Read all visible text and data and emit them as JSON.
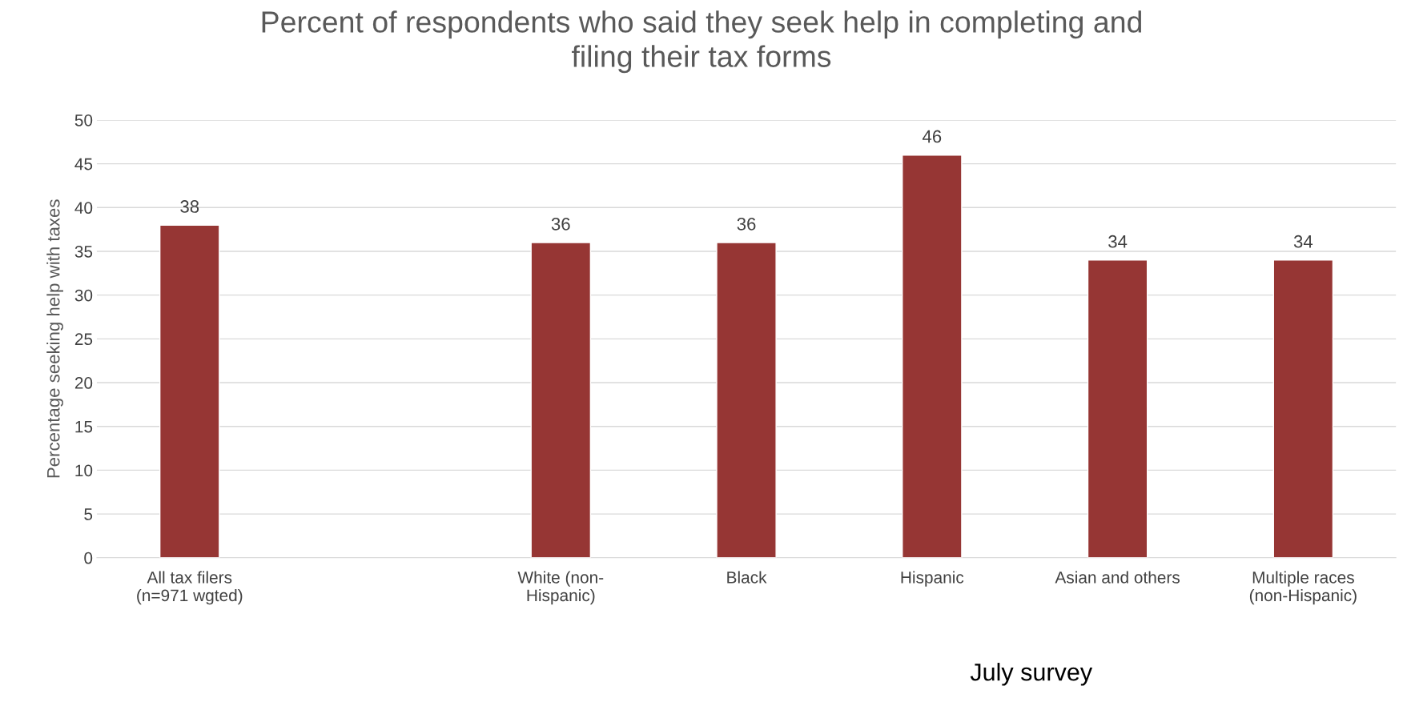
{
  "chart_data": {
    "type": "bar",
    "title": "Percent of respondents who said they seek help in completing and\nfiling their tax forms",
    "ylabel": "Percentage seeking help with taxes",
    "categories": [
      "All tax filers\n(n=971 wgted)",
      null,
      "White (non-\nHispanic)",
      "Black",
      "Hispanic",
      "Asian and others",
      "Multiple races\n(non-Hispanic)"
    ],
    "values": [
      38,
      null,
      36,
      36,
      46,
      34,
      34
    ],
    "color": "#963634",
    "ylim": [
      0,
      50
    ],
    "yticks": [
      0,
      5,
      10,
      15,
      20,
      25,
      30,
      35,
      40,
      45,
      50
    ],
    "grid": "y",
    "legend": false,
    "data_labels": true,
    "annotations": [
      "July survey"
    ]
  }
}
